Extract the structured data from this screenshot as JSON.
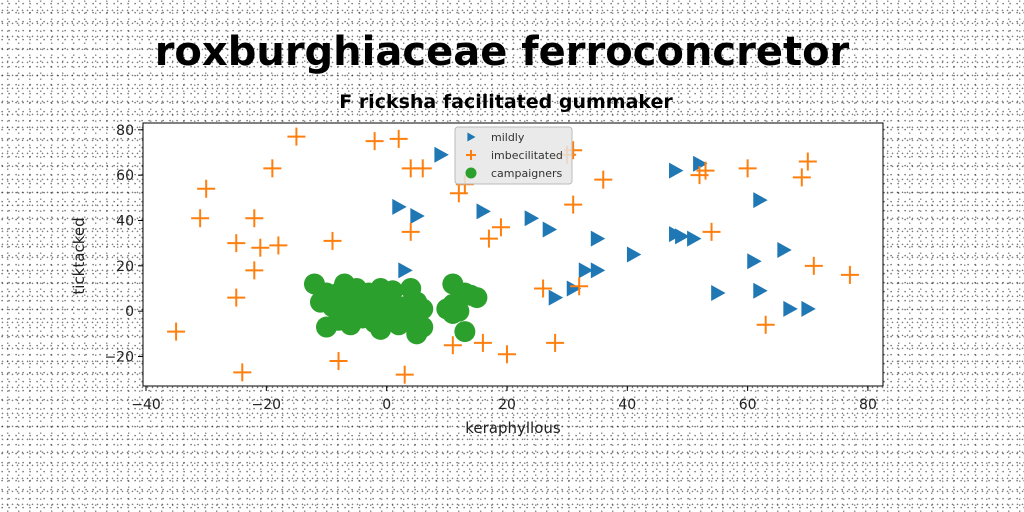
{
  "chart_data": {
    "type": "scatter",
    "title": "roxburghiaceae ferroconcretor",
    "subtitle": "F ricksha facilitated gummaker",
    "xlabel": "keraphyllous",
    "ylabel": "ticktacked",
    "xlim": [
      -40.5,
      82.5
    ],
    "ylim": [
      -33,
      83
    ],
    "xticks": [
      -40,
      -20,
      0,
      20,
      40,
      60,
      80
    ],
    "yticks": [
      -20,
      0,
      20,
      40,
      60,
      80
    ],
    "grid": false,
    "legend_position": "top-center",
    "series": [
      {
        "name": "mildly",
        "marker": "triangle-right",
        "color": "#1f77b4",
        "points": [
          [
            9,
            69
          ],
          [
            2,
            46
          ],
          [
            5,
            42
          ],
          [
            3,
            18
          ],
          [
            16,
            44
          ],
          [
            24,
            41
          ],
          [
            27,
            36
          ],
          [
            35,
            32
          ],
          [
            28,
            6
          ],
          [
            31,
            10
          ],
          [
            33,
            18
          ],
          [
            35,
            18
          ],
          [
            41,
            25
          ],
          [
            48,
            62
          ],
          [
            52,
            65
          ],
          [
            49,
            33
          ],
          [
            48,
            34
          ],
          [
            51,
            32
          ],
          [
            55,
            8
          ],
          [
            61,
            22
          ],
          [
            62,
            49
          ],
          [
            62,
            9
          ],
          [
            66,
            27
          ],
          [
            67,
            1
          ],
          [
            70,
            1
          ]
        ]
      },
      {
        "name": "imbecilitated",
        "marker": "plus",
        "color": "#ff7f0e",
        "points": [
          [
            -15,
            77
          ],
          [
            -2,
            75
          ],
          [
            2,
            76
          ],
          [
            4,
            63
          ],
          [
            6,
            63
          ],
          [
            -19,
            63
          ],
          [
            -30,
            54
          ],
          [
            -31,
            41
          ],
          [
            -22,
            41
          ],
          [
            -25,
            30
          ],
          [
            -21,
            28
          ],
          [
            -18,
            29
          ],
          [
            -9,
            31
          ],
          [
            -22,
            18
          ],
          [
            -25,
            6
          ],
          [
            -35,
            -9
          ],
          [
            -24,
            -27
          ],
          [
            -8,
            -22
          ],
          [
            3,
            -28
          ],
          [
            4,
            35
          ],
          [
            12,
            52
          ],
          [
            13,
            56
          ],
          [
            17,
            32
          ],
          [
            19,
            37
          ],
          [
            31,
            47
          ],
          [
            36,
            58
          ],
          [
            30,
            69
          ],
          [
            31,
            71
          ],
          [
            52,
            60
          ],
          [
            53,
            62
          ],
          [
            54,
            35
          ],
          [
            60,
            63
          ],
          [
            69,
            59
          ],
          [
            70,
            66
          ],
          [
            71,
            20
          ],
          [
            77,
            16
          ],
          [
            63,
            -6
          ],
          [
            28,
            -14
          ],
          [
            20,
            -19
          ],
          [
            16,
            -14
          ],
          [
            11,
            -15
          ],
          [
            26,
            10
          ],
          [
            32,
            11
          ]
        ]
      },
      {
        "name": "campaigners",
        "marker": "circle",
        "color": "#2ca02c",
        "points": [
          [
            -12,
            12
          ],
          [
            -10,
            8
          ],
          [
            -7,
            12
          ],
          [
            -5,
            10
          ],
          [
            -3,
            8
          ],
          [
            -1,
            10
          ],
          [
            1,
            9
          ],
          [
            4,
            10
          ],
          [
            -11,
            4
          ],
          [
            -9,
            2
          ],
          [
            -7,
            4
          ],
          [
            -5,
            0
          ],
          [
            -3,
            3
          ],
          [
            -1,
            1
          ],
          [
            1,
            3
          ],
          [
            3,
            2
          ],
          [
            5,
            4
          ],
          [
            -10,
            -7
          ],
          [
            -8,
            -4
          ],
          [
            -6,
            -6
          ],
          [
            -4,
            -3
          ],
          [
            -2,
            -5
          ],
          [
            0,
            -3
          ],
          [
            2,
            -6
          ],
          [
            4,
            -4
          ],
          [
            6,
            -7
          ],
          [
            -4,
            6
          ],
          [
            0,
            6
          ],
          [
            3,
            -1
          ],
          [
            -1,
            -8
          ],
          [
            5,
            -10
          ],
          [
            11,
            12
          ],
          [
            13,
            8
          ],
          [
            11,
            3
          ],
          [
            12,
            0
          ],
          [
            14,
            7
          ],
          [
            11,
            -1
          ],
          [
            15,
            6
          ],
          [
            10,
            1
          ],
          [
            13,
            -9
          ],
          [
            -7,
            -1
          ],
          [
            2,
            -2
          ],
          [
            -8,
            8
          ],
          [
            6,
            1
          ]
        ]
      }
    ]
  }
}
